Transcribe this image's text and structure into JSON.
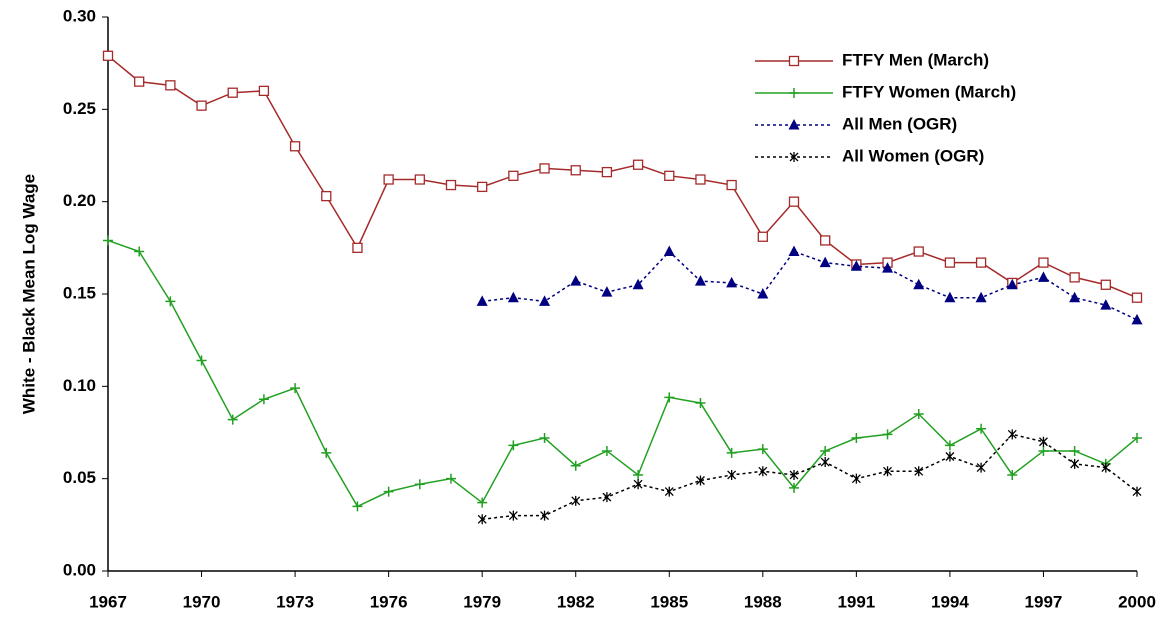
{
  "chart_data": {
    "type": "line",
    "y_label": "White - Black Mean Log Wage",
    "x": [
      1967,
      1968,
      1969,
      1970,
      1971,
      1972,
      1973,
      1974,
      1975,
      1976,
      1977,
      1978,
      1979,
      1980,
      1981,
      1982,
      1983,
      1984,
      1985,
      1986,
      1987,
      1988,
      1989,
      1990,
      1991,
      1992,
      1993,
      1994,
      1995,
      1996,
      1997,
      1998,
      1999,
      2000
    ],
    "xlim": [
      1967,
      2000
    ],
    "xticks": [
      1967,
      1970,
      1973,
      1976,
      1979,
      1982,
      1985,
      1988,
      1991,
      1994,
      1997,
      2000
    ],
    "ylim": [
      0,
      0.3
    ],
    "yticks": [
      {
        "value": 0,
        "label": "0.00"
      },
      {
        "value": 0.05,
        "label": "0.05"
      },
      {
        "value": 0.1,
        "label": "0.10"
      },
      {
        "value": 0.15,
        "label": "0.15"
      },
      {
        "value": 0.2,
        "label": "0.20"
      },
      {
        "value": 0.25,
        "label": "0.25"
      },
      {
        "value": 0.3,
        "label": "0.30"
      }
    ],
    "legend": "upper right",
    "series": [
      {
        "name": "FTFY Men (March)",
        "color": "#a52a2a",
        "marker": "square",
        "dash": "solid",
        "values": [
          0.279,
          0.265,
          0.263,
          0.252,
          0.259,
          0.26,
          0.23,
          0.203,
          0.175,
          0.212,
          0.212,
          0.209,
          0.208,
          0.214,
          0.218,
          0.217,
          0.216,
          0.22,
          0.214,
          0.212,
          0.209,
          0.181,
          0.2,
          0.179,
          0.166,
          0.167,
          0.173,
          0.167,
          0.167,
          0.156,
          0.167,
          0.159,
          0.155,
          0.148
        ]
      },
      {
        "name": "FTFY Women (March)",
        "color": "#22a022",
        "marker": "plus",
        "dash": "solid",
        "values": [
          0.179,
          0.173,
          0.146,
          0.114,
          0.082,
          0.093,
          0.099,
          0.064,
          0.035,
          0.043,
          0.047,
          0.05,
          0.037,
          0.068,
          0.072,
          0.057,
          0.065,
          0.052,
          0.094,
          0.091,
          0.064,
          0.066,
          0.045,
          0.065,
          0.072,
          0.074,
          0.085,
          0.068,
          0.077,
          0.052,
          0.065,
          0.065,
          0.058,
          0.072
        ]
      },
      {
        "name": "All Men (OGR)",
        "color": "#000080",
        "marker": "triangle",
        "dash": "dotted",
        "values": [
          null,
          null,
          null,
          null,
          null,
          null,
          null,
          null,
          null,
          null,
          null,
          null,
          0.146,
          0.148,
          0.146,
          0.157,
          0.151,
          0.155,
          0.173,
          0.157,
          0.156,
          0.15,
          0.173,
          0.167,
          0.165,
          0.164,
          0.155,
          0.148,
          0.148,
          0.155,
          0.159,
          0.148,
          0.144,
          0.136
        ]
      },
      {
        "name": "All Women (OGR)",
        "color": "#000000",
        "marker": "asterisk",
        "dash": "dotted",
        "values": [
          null,
          null,
          null,
          null,
          null,
          null,
          null,
          null,
          null,
          null,
          null,
          null,
          0.028,
          0.03,
          0.03,
          0.038,
          0.04,
          0.047,
          0.043,
          0.049,
          0.052,
          0.054,
          0.052,
          0.059,
          0.05,
          0.054,
          0.054,
          0.062,
          0.056,
          0.074,
          0.07,
          0.058,
          0.056,
          0.043
        ]
      }
    ]
  }
}
